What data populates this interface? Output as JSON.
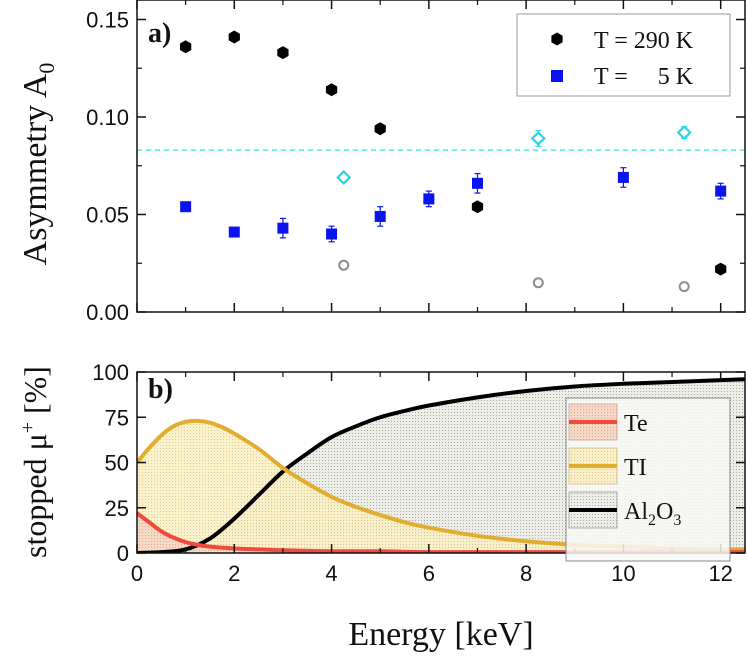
{
  "chart_data": [
    {
      "panel": "a)",
      "type": "scatter",
      "ylabel": "Asymmetry A",
      "ylabel_sub": "0",
      "xlim": [
        0,
        12.5
      ],
      "ylim": [
        0,
        0.16
      ],
      "yticks": [
        0.0,
        0.05,
        0.1,
        0.15
      ],
      "ytick_labels": [
        "0.00",
        "0.05",
        "0.10",
        "0.15"
      ],
      "reference_line": {
        "y": 0.083,
        "color": "#55e8f0",
        "style": "dashed"
      },
      "legend": {
        "position": "top-right",
        "entries": [
          {
            "label": "T = 290 K",
            "marker": "hexagon",
            "color": "#000000"
          },
          {
            "label": "T =     5 K",
            "marker": "square",
            "color": "#0a14f0"
          }
        ]
      },
      "series": [
        {
          "name": "T = 290 K",
          "marker": "hexagon",
          "color": "#000000",
          "x": [
            1,
            2,
            3,
            4,
            5,
            7,
            12
          ],
          "y": [
            0.136,
            0.141,
            0.133,
            0.114,
            0.094,
            0.054,
            0.022
          ],
          "err": [
            0.002,
            0.002,
            0.002,
            0.002,
            0.002,
            0.002,
            0.002
          ]
        },
        {
          "name": "T = 5 K",
          "marker": "square",
          "color": "#0a14f0",
          "x": [
            1,
            2,
            3,
            4,
            5,
            6,
            7,
            10,
            12
          ],
          "y": [
            0.054,
            0.041,
            0.043,
            0.04,
            0.049,
            0.058,
            0.066,
            0.069,
            0.062
          ],
          "err": [
            0.002,
            0.002,
            0.005,
            0.004,
            0.005,
            0.004,
            0.005,
            0.005,
            0.004
          ]
        },
        {
          "name": "open cyan diamonds",
          "marker": "diamond-open",
          "color": "#22d8e6",
          "x": [
            4.25,
            8.25,
            11.25
          ],
          "y": [
            0.069,
            0.089,
            0.092
          ],
          "err": [
            0.002,
            0.004,
            0.003
          ]
        },
        {
          "name": "open gray circles",
          "marker": "circle-open",
          "color": "#8c8c8c",
          "x": [
            4.25,
            8.25,
            11.25
          ],
          "y": [
            0.024,
            0.015,
            0.013
          ],
          "err": [
            0.001,
            0.001,
            0.001
          ]
        }
      ]
    },
    {
      "panel": "b)",
      "type": "area",
      "ylabel": "stopped μ",
      "ylabel_sup": "+",
      "ylabel_unit": " [%]",
      "xlabel": "Energy [keV]",
      "xlim": [
        0,
        12.5
      ],
      "ylim": [
        0,
        100
      ],
      "xticks": [
        0,
        2,
        4,
        6,
        8,
        10,
        12
      ],
      "xtick_labels": [
        "0",
        "2",
        "4",
        "6",
        "8",
        "10",
        "12"
      ],
      "yticks": [
        0,
        25,
        50,
        75,
        100
      ],
      "ytick_labels": [
        "0",
        "25",
        "50",
        "75",
        "100"
      ],
      "legend": {
        "position": "right",
        "entries": [
          {
            "label": "Te",
            "color": "#f04a3c",
            "fill": "#f4d3c2"
          },
          {
            "label": "TI",
            "color": "#e2ad2e",
            "fill": "#f8edc4"
          },
          {
            "label": "Al",
            "sub": "2",
            "label2": "O",
            "sub2": "3",
            "color": "#000000",
            "fill": "#e4e4e0"
          }
        ]
      },
      "series": [
        {
          "name": "Te",
          "color": "#f04a3c",
          "x": [
            0,
            0.25,
            0.5,
            0.75,
            1.0,
            1.25,
            1.5,
            2.0,
            2.5,
            3.0,
            4.0,
            5.0,
            6.0,
            8.0,
            10.0,
            12.5
          ],
          "values": [
            22,
            17,
            12,
            8.5,
            6,
            4.5,
            3.5,
            2.5,
            2,
            1.5,
            1,
            1,
            0.5,
            0.5,
            0.5,
            0.5
          ]
        },
        {
          "name": "TI",
          "color": "#e2ad2e",
          "x": [
            0,
            0.25,
            0.5,
            0.75,
            1.0,
            1.25,
            1.5,
            1.75,
            2.0,
            2.5,
            3.0,
            3.5,
            4.0,
            4.5,
            5.0,
            5.5,
            6.0,
            7.0,
            8.0,
            9.0,
            10.0,
            11.0,
            12.0,
            12.5
          ],
          "values": [
            50,
            58,
            65,
            70,
            72.5,
            73,
            72,
            69.5,
            66,
            57.5,
            47,
            38.5,
            31,
            25.5,
            21,
            17,
            14,
            9.5,
            6.5,
            4.5,
            3.5,
            2.5,
            2,
            2
          ]
        },
        {
          "name": "Al2O3",
          "color": "#000000",
          "x": [
            0,
            0.5,
            1.0,
            1.5,
            2.0,
            2.5,
            3.0,
            3.5,
            4.0,
            4.5,
            5.0,
            5.5,
            6.0,
            7.0,
            8.0,
            9.0,
            10.0,
            11.0,
            12.0,
            12.5
          ],
          "values": [
            0,
            0.5,
            2,
            8,
            19,
            32,
            45,
            55,
            64,
            70,
            75,
            78.5,
            81.5,
            86,
            89.5,
            92,
            93.5,
            94.5,
            95.5,
            96
          ]
        }
      ]
    }
  ]
}
